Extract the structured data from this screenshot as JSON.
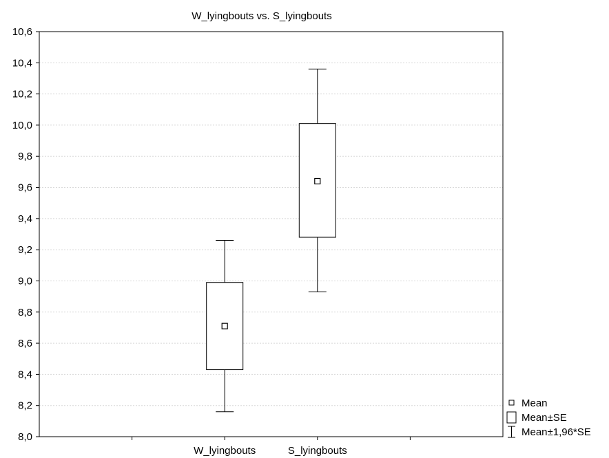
{
  "chart_data": {
    "type": "box",
    "title": "W_lyingbouts vs. S_lyingbouts",
    "xlabel": "",
    "ylabel": "",
    "ylim": [
      8.0,
      10.6
    ],
    "y_ticks": [
      "8,0",
      "8,2",
      "8,4",
      "8,6",
      "8,8",
      "9,0",
      "9,2",
      "9,4",
      "9,6",
      "9,8",
      "10,0",
      "10,2",
      "10,4",
      "10,6"
    ],
    "grid": true,
    "legend_position": "bottom-right",
    "categories": [
      "W_lyingbouts",
      "S_lyingbouts"
    ],
    "series": [
      {
        "mean": 8.71,
        "se_low": 8.43,
        "se_high": 8.99,
        "ci_low": 8.16,
        "ci_high": 9.26
      },
      {
        "mean": 9.64,
        "se_low": 9.28,
        "se_high": 10.01,
        "ci_low": 8.93,
        "ci_high": 10.36
      }
    ],
    "legend": [
      "Mean",
      "Mean±SE",
      "Mean±1,96*SE"
    ]
  }
}
